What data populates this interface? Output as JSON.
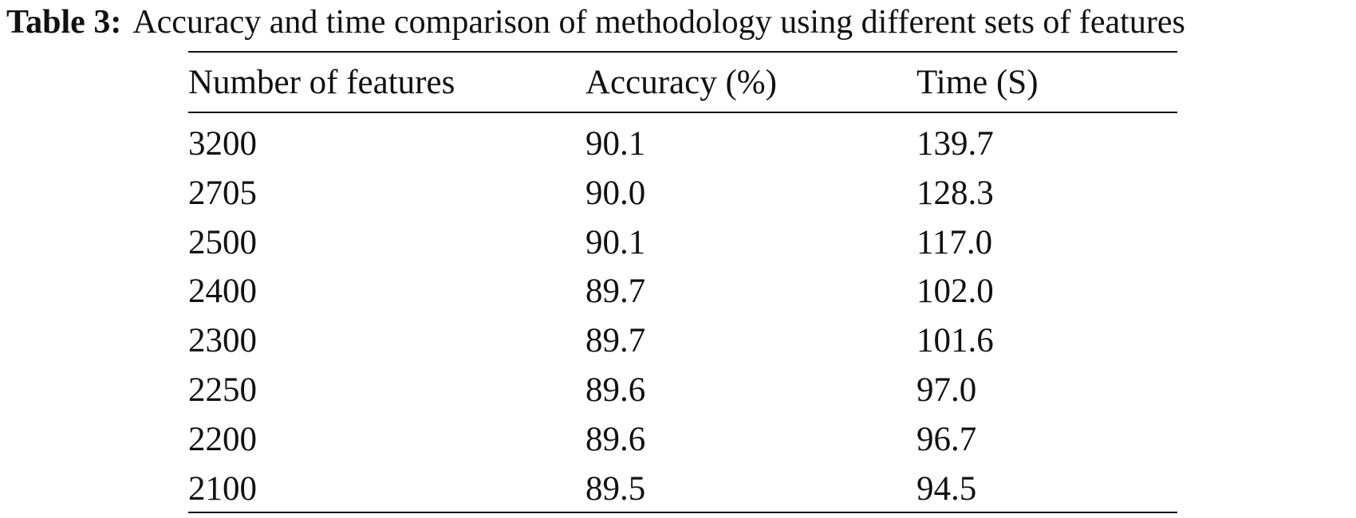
{
  "caption": {
    "label": "Table 3:",
    "text": "Accuracy and time comparison of methodology using different sets of features"
  },
  "table": {
    "header": [
      "Number of features",
      "Accuracy (%)",
      "Time (S)"
    ],
    "rows": [
      [
        "3200",
        "90.1",
        "139.7"
      ],
      [
        "2705",
        "90.0",
        "128.3"
      ],
      [
        "2500",
        "90.1",
        "117.0"
      ],
      [
        "2400",
        "89.7",
        "102.0"
      ],
      [
        "2300",
        "89.7",
        "101.6"
      ],
      [
        "2250",
        "89.6",
        "97.0"
      ],
      [
        "2200",
        "89.6",
        "96.7"
      ],
      [
        "2100",
        "89.5",
        "94.5"
      ]
    ]
  }
}
